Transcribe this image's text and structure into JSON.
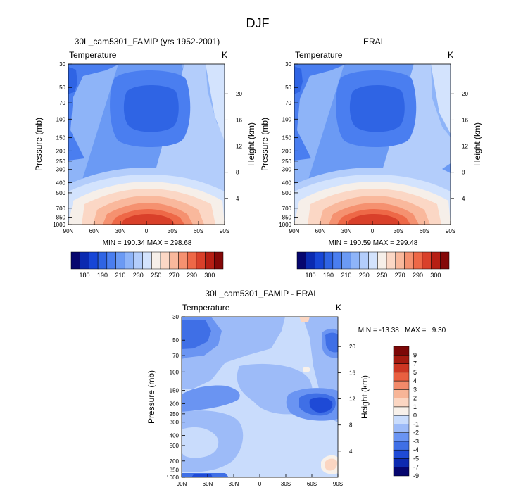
{
  "page_title": "DJF",
  "colors": {
    "main_scale": [
      "#06066e",
      "#0a2ab0",
      "#1746d6",
      "#2f64e4",
      "#4a7ef0",
      "#6b9af4",
      "#8eb4f8",
      "#b3cdfb",
      "#d3e3fd",
      "#f6efe9",
      "#fbd7c5",
      "#f9b89c",
      "#f59170",
      "#ee6847",
      "#d9402a",
      "#b61f14",
      "#840808"
    ],
    "diff_scale": [
      "#06066e",
      "#0d2ab0",
      "#1e4ad6",
      "#3f6fe6",
      "#6a94f2",
      "#9dbbf8",
      "#c9dcfc",
      "#f8f1ea",
      "#fbd6c2",
      "#f7b597",
      "#f28a6a",
      "#e95f40",
      "#cc3623",
      "#a41a10",
      "#7c0707"
    ]
  },
  "chart_data": [
    {
      "type": "heatmap",
      "title": "30L_cam5301_FAMIP (yrs 1952-2001)",
      "left_label": "Temperature",
      "right_label": "K",
      "ylabel": "Pressure (mb)",
      "ylabel_right": "Height (km)",
      "x_ticks": [
        "90N",
        "60N",
        "30N",
        "0",
        "30S",
        "60S",
        "90S"
      ],
      "y_ticks": [
        "30",
        "50",
        "70",
        "100",
        "150",
        "200",
        "250",
        "300",
        "400",
        "500",
        "700",
        "850",
        "1000"
      ],
      "height_ticks": [
        "20",
        "16",
        "12",
        "8",
        "4"
      ],
      "stats": "MIN = 190.34   MAX = 298.68",
      "min": 190.34,
      "max": 298.68,
      "colorbar_labels": [
        "180",
        "190",
        "210",
        "230",
        "250",
        "270",
        "290",
        "300"
      ]
    },
    {
      "type": "heatmap",
      "title": "ERAI",
      "left_label": "Temperature",
      "right_label": "K",
      "ylabel": "Pressure (mb)",
      "ylabel_right": "Height (km)",
      "x_ticks": [
        "90N",
        "60N",
        "30N",
        "0",
        "30S",
        "60S",
        "90S"
      ],
      "y_ticks": [
        "30",
        "50",
        "70",
        "100",
        "150",
        "200",
        "250",
        "300",
        "400",
        "500",
        "700",
        "850",
        "1000"
      ],
      "height_ticks": [
        "20",
        "16",
        "12",
        "8",
        "4"
      ],
      "stats": "MIN = 190.59   MAX = 299.48",
      "min": 190.59,
      "max": 299.48,
      "colorbar_labels": [
        "180",
        "190",
        "210",
        "230",
        "250",
        "270",
        "290",
        "300"
      ]
    },
    {
      "type": "heatmap",
      "title": "30L_cam5301_FAMIP - ERAI",
      "left_label": "Temperature",
      "right_label": "K",
      "ylabel": "Pressure (mb)",
      "ylabel_right": "Height (km)",
      "x_ticks": [
        "90N",
        "60N",
        "30N",
        "0",
        "30S",
        "60S",
        "90S"
      ],
      "y_ticks": [
        "30",
        "50",
        "70",
        "100",
        "150",
        "200",
        "250",
        "300",
        "400",
        "500",
        "700",
        "850",
        "1000"
      ],
      "height_ticks": [
        "20",
        "16",
        "12",
        "8",
        "4"
      ],
      "stats": "MIN = -13.38   MAX =   9.30",
      "min": -13.38,
      "max": 9.3,
      "colorbar_labels": [
        "9",
        "7",
        "5",
        "4",
        "3",
        "2",
        "1",
        "0",
        "-1",
        "-2",
        "-3",
        "-4",
        "-5",
        "-7",
        "-9"
      ]
    }
  ]
}
